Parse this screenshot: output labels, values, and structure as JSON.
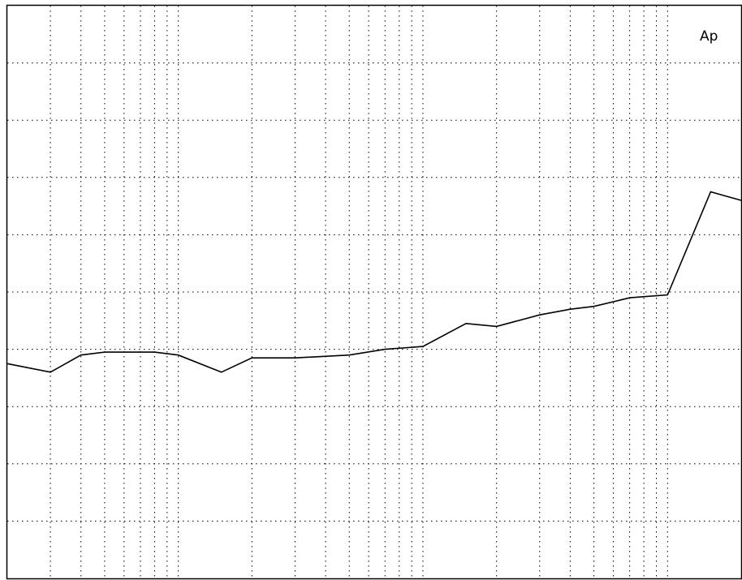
{
  "logo": {
    "text": "Ap"
  },
  "chart_data": {
    "type": "line",
    "title": "",
    "xlabel": "",
    "ylabel": "",
    "x_scale": "log",
    "grid": true,
    "xlim": [
      20,
      20000
    ],
    "ylim": [
      -5,
      5
    ],
    "series": [
      {
        "x": [
          20,
          30,
          40,
          50,
          60,
          70,
          80,
          100,
          150,
          200,
          300,
          500,
          700,
          1000,
          1500,
          2000,
          3000,
          4000,
          5000,
          7000,
          10000,
          15000,
          20000
        ],
        "y": [
          -1.25,
          -1.4,
          -1.1,
          -1.05,
          -1.05,
          -1.05,
          -1.05,
          -1.1,
          -1.4,
          -1.15,
          -1.15,
          -1.1,
          -1.0,
          -0.95,
          -0.55,
          -0.6,
          -0.4,
          -0.3,
          -0.25,
          -0.1,
          -0.05,
          1.75,
          1.6
        ]
      }
    ]
  }
}
